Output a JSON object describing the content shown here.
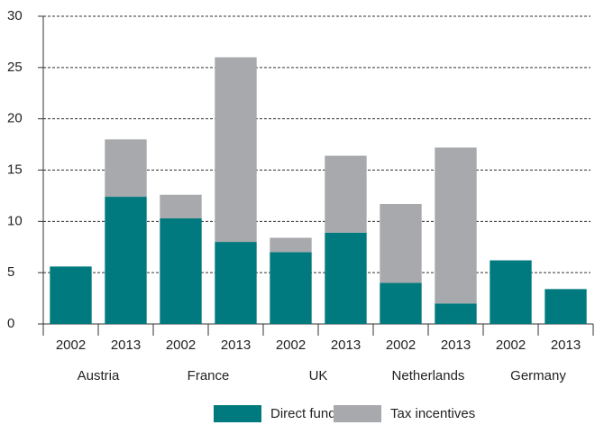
{
  "chart_data": {
    "type": "stacked_bar",
    "categories": [
      "2002",
      "2013",
      "2002",
      "2013",
      "2002",
      "2013",
      "2002",
      "2013",
      "2002",
      "2013"
    ],
    "groups": [
      "Austria",
      "France",
      "UK",
      "Netherlands",
      "Germany"
    ],
    "series": [
      {
        "name": "Direct funding",
        "color": "#007a7e",
        "values": [
          5.6,
          12.4,
          10.3,
          8.0,
          7.0,
          8.9,
          4.0,
          2.0,
          6.2,
          3.4
        ]
      },
      {
        "name": "Tax incentives",
        "color": "#a7a9ac",
        "values": [
          0,
          5.6,
          2.3,
          18.0,
          1.4,
          7.5,
          7.7,
          15.2,
          0,
          0
        ]
      }
    ],
    "ylim": [
      0,
      30
    ],
    "yticks": [
      0,
      5,
      10,
      15,
      20,
      25,
      30
    ],
    "grid": true,
    "legend": "bottom"
  }
}
